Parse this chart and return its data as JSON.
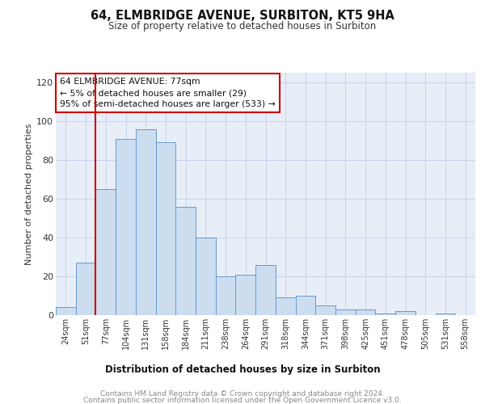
{
  "title1": "64, ELMBRIDGE AVENUE, SURBITON, KT5 9HA",
  "title2": "Size of property relative to detached houses in Surbiton",
  "xlabel": "Distribution of detached houses by size in Surbiton",
  "ylabel": "Number of detached properties",
  "categories": [
    "24sqm",
    "51sqm",
    "77sqm",
    "104sqm",
    "131sqm",
    "158sqm",
    "184sqm",
    "211sqm",
    "238sqm",
    "264sqm",
    "291sqm",
    "318sqm",
    "344sqm",
    "371sqm",
    "398sqm",
    "425sqm",
    "451sqm",
    "478sqm",
    "505sqm",
    "531sqm",
    "558sqm"
  ],
  "values": [
    4,
    27,
    65,
    91,
    96,
    89,
    56,
    40,
    20,
    21,
    26,
    9,
    10,
    5,
    3,
    3,
    1,
    2,
    0,
    1,
    0
  ],
  "bar_color": "#ccddf0",
  "bar_edge_color": "#6699cc",
  "vline_color": "#cc0000",
  "annotation_text": "64 ELMBRIDGE AVENUE: 77sqm\n← 5% of detached houses are smaller (29)\n95% of semi-detached houses are larger (533) →",
  "annotation_box_color": "#ffffff",
  "annotation_box_edge": "#cc0000",
  "ylim": [
    0,
    125
  ],
  "yticks": [
    0,
    20,
    40,
    60,
    80,
    100,
    120
  ],
  "footer_line1": "Contains HM Land Registry data © Crown copyright and database right 2024.",
  "footer_line2": "Contains public sector information licensed under the Open Government Licence v3.0.",
  "grid_color": "#c8d4e8",
  "background_color": "#e8eef8"
}
